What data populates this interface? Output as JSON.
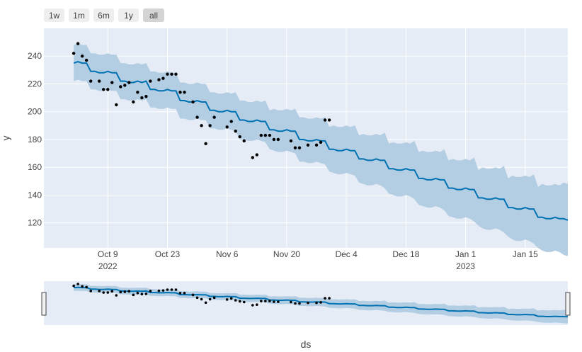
{
  "rangeselector": {
    "buttons": [
      {
        "label": "1w",
        "active": false
      },
      {
        "label": "1m",
        "active": false
      },
      {
        "label": "6m",
        "active": false
      },
      {
        "label": "1y",
        "active": false
      },
      {
        "label": "all",
        "active": true
      }
    ]
  },
  "colors": {
    "plot_bg": "#e5ecf6",
    "grid": "#ffffff",
    "band": "#b3cde3",
    "line": "#0072b2",
    "points": "#000000",
    "text": "#444444"
  },
  "chart_data": {
    "type": "line",
    "title": "",
    "xlabel": "ds",
    "ylabel": "y",
    "xlim": [
      "2022-09-24",
      "2023-01-25"
    ],
    "ylim": [
      102,
      260
    ],
    "grid": true,
    "x_ticks": [
      {
        "date": "2022-10-09",
        "label": "Oct 9",
        "sublabel": "2022"
      },
      {
        "date": "2022-10-23",
        "label": "Oct 23",
        "sublabel": ""
      },
      {
        "date": "2022-11-06",
        "label": "Nov 6",
        "sublabel": ""
      },
      {
        "date": "2022-11-20",
        "label": "Nov 20",
        "sublabel": ""
      },
      {
        "date": "2022-12-04",
        "label": "Dec 4",
        "sublabel": ""
      },
      {
        "date": "2022-12-18",
        "label": "Dec 18",
        "sublabel": ""
      },
      {
        "date": "2023-01-01",
        "label": "Jan 1",
        "sublabel": "2023"
      },
      {
        "date": "2023-01-15",
        "label": "Jan 15",
        "sublabel": ""
      }
    ],
    "y_ticks": [
      120,
      140,
      160,
      180,
      200,
      220,
      240
    ],
    "forecast": {
      "x": [
        "2022-10-01",
        "2022-10-02",
        "2022-10-03",
        "2022-10-04",
        "2022-10-05",
        "2022-10-06",
        "2022-10-07",
        "2022-10-08",
        "2022-10-09",
        "2022-10-10",
        "2022-10-11",
        "2022-10-12",
        "2022-10-13",
        "2022-10-14",
        "2022-10-15",
        "2022-10-16",
        "2022-10-17",
        "2022-10-18",
        "2022-10-19",
        "2022-10-20",
        "2022-10-21",
        "2022-10-22",
        "2022-10-23",
        "2022-10-24",
        "2022-10-25",
        "2022-10-26",
        "2022-10-27",
        "2022-10-28",
        "2022-10-29",
        "2022-10-30",
        "2022-10-31",
        "2022-11-01",
        "2022-11-02",
        "2022-11-03",
        "2022-11-04",
        "2022-11-05",
        "2022-11-06",
        "2022-11-07",
        "2022-11-08",
        "2022-11-09",
        "2022-11-10",
        "2022-11-11",
        "2022-11-12",
        "2022-11-13",
        "2022-11-14",
        "2022-11-15",
        "2022-11-16",
        "2022-11-17",
        "2022-11-18",
        "2022-11-19",
        "2022-11-20",
        "2022-11-21",
        "2022-11-22",
        "2022-11-23",
        "2022-11-24",
        "2022-11-25",
        "2022-11-26",
        "2022-11-27",
        "2022-11-28",
        "2022-11-29",
        "2022-11-30",
        "2022-12-01",
        "2022-12-02",
        "2022-12-03",
        "2022-12-04",
        "2022-12-05",
        "2022-12-06",
        "2022-12-07",
        "2022-12-08",
        "2022-12-09",
        "2022-12-10",
        "2022-12-11",
        "2022-12-12",
        "2022-12-13",
        "2022-12-14",
        "2022-12-15",
        "2022-12-16",
        "2022-12-17",
        "2022-12-18",
        "2022-12-19",
        "2022-12-20",
        "2022-12-21",
        "2022-12-22",
        "2022-12-23",
        "2022-12-24",
        "2022-12-25",
        "2022-12-26",
        "2022-12-27",
        "2022-12-28",
        "2022-12-29",
        "2022-12-30",
        "2022-12-31",
        "2023-01-01",
        "2023-01-02",
        "2023-01-03",
        "2023-01-04",
        "2023-01-05",
        "2023-01-06",
        "2023-01-07",
        "2023-01-08",
        "2023-01-09",
        "2023-01-10",
        "2023-01-11",
        "2023-01-12",
        "2023-01-13",
        "2023-01-14",
        "2023-01-15",
        "2023-01-16",
        "2023-01-17",
        "2023-01-18",
        "2023-01-19",
        "2023-01-20",
        "2023-01-21",
        "2023-01-22",
        "2023-01-23",
        "2023-01-24",
        "2023-01-25"
      ],
      "yhat": [
        235,
        236,
        235,
        235,
        229,
        229,
        228,
        228,
        229,
        228,
        228,
        222,
        222,
        221,
        221,
        222,
        221,
        222,
        216,
        216,
        215,
        215,
        216,
        215,
        215,
        208,
        208,
        207,
        207,
        208,
        207,
        207,
        201,
        201,
        200,
        200,
        201,
        200,
        200,
        194,
        194,
        193,
        193,
        194,
        193,
        193,
        187,
        187,
        186,
        186,
        187,
        186,
        186,
        180,
        180,
        179,
        179,
        180,
        179,
        179,
        173,
        173,
        172,
        172,
        173,
        172,
        172,
        166,
        166,
        165,
        165,
        166,
        165,
        165,
        159,
        159,
        158,
        158,
        159,
        158,
        158,
        152,
        152,
        151,
        151,
        152,
        151,
        151,
        145,
        145,
        144,
        144,
        145,
        144,
        144,
        138,
        138,
        137,
        137,
        138,
        137,
        137,
        131,
        131,
        130,
        130,
        131,
        130,
        130,
        124,
        124,
        123,
        123,
        124,
        123,
        123,
        122
      ],
      "yhat_upper": [
        248,
        249,
        248,
        248,
        242,
        242,
        241,
        241,
        242,
        241,
        241,
        235,
        235,
        234,
        234,
        235,
        234,
        235,
        229,
        229,
        228,
        228,
        229,
        228,
        228,
        221,
        221,
        220,
        220,
        221,
        220,
        220,
        214,
        214,
        213,
        213,
        214,
        213,
        214,
        208,
        208,
        207,
        207,
        208,
        207,
        208,
        201,
        202,
        201,
        201,
        202,
        201,
        202,
        196,
        196,
        195,
        195,
        196,
        195,
        196,
        189,
        190,
        189,
        189,
        190,
        189,
        190,
        183,
        184,
        183,
        183,
        184,
        183,
        185,
        177,
        178,
        177,
        177,
        178,
        177,
        179,
        171,
        172,
        171,
        171,
        172,
        171,
        173,
        165,
        166,
        165,
        165,
        166,
        165,
        167,
        158,
        160,
        159,
        159,
        160,
        159,
        161,
        152,
        154,
        153,
        153,
        154,
        153,
        155,
        146,
        148,
        147,
        147,
        148,
        147,
        149,
        148
      ],
      "yhat_lower": [
        222,
        223,
        222,
        222,
        216,
        216,
        215,
        215,
        216,
        215,
        215,
        209,
        209,
        208,
        208,
        209,
        208,
        209,
        203,
        203,
        202,
        202,
        203,
        202,
        202,
        195,
        195,
        194,
        194,
        195,
        194,
        194,
        188,
        188,
        187,
        187,
        188,
        187,
        186,
        180,
        180,
        179,
        179,
        180,
        179,
        178,
        173,
        172,
        171,
        171,
        172,
        171,
        170,
        164,
        164,
        163,
        163,
        164,
        163,
        162,
        157,
        156,
        155,
        155,
        156,
        155,
        154,
        149,
        148,
        147,
        147,
        148,
        147,
        145,
        141,
        140,
        139,
        139,
        140,
        139,
        137,
        133,
        132,
        131,
        131,
        132,
        131,
        129,
        125,
        124,
        123,
        123,
        124,
        123,
        121,
        118,
        116,
        115,
        115,
        116,
        115,
        113,
        110,
        108,
        107,
        107,
        108,
        107,
        105,
        102,
        100,
        99,
        99,
        100,
        99,
        97,
        96
      ]
    },
    "observed": {
      "x": [
        "2022-10-01",
        "2022-10-02",
        "2022-10-03",
        "2022-10-04",
        "2022-10-05",
        "2022-10-07",
        "2022-10-08",
        "2022-10-09",
        "2022-10-10",
        "2022-10-11",
        "2022-10-12",
        "2022-10-13",
        "2022-10-14",
        "2022-10-15",
        "2022-10-16",
        "2022-10-17",
        "2022-10-18",
        "2022-10-19",
        "2022-10-21",
        "2022-10-22",
        "2022-10-23",
        "2022-10-24",
        "2022-10-25",
        "2022-10-26",
        "2022-10-27",
        "2022-10-29",
        "2022-10-30",
        "2022-10-31",
        "2022-11-01",
        "2022-11-02",
        "2022-11-03",
        "2022-11-06",
        "2022-11-07",
        "2022-11-08",
        "2022-11-09",
        "2022-11-10",
        "2022-11-12",
        "2022-11-13",
        "2022-11-14",
        "2022-11-15",
        "2022-11-16",
        "2022-11-17",
        "2022-11-18",
        "2022-11-21",
        "2022-11-22",
        "2022-11-23",
        "2022-11-25",
        "2022-11-27",
        "2022-11-28",
        "2022-11-29",
        "2022-11-30"
      ],
      "y": [
        242,
        249,
        240,
        237,
        222,
        222,
        216,
        216,
        221,
        205,
        218,
        219,
        221,
        207,
        214,
        210,
        211,
        222,
        223,
        224,
        227,
        227,
        227,
        214,
        214,
        207,
        196,
        190,
        177,
        190,
        196,
        189,
        193,
        186,
        182,
        179,
        167,
        169,
        183,
        183,
        183,
        180,
        180,
        179,
        174,
        174,
        176,
        176,
        178,
        194,
        194
      ]
    }
  }
}
